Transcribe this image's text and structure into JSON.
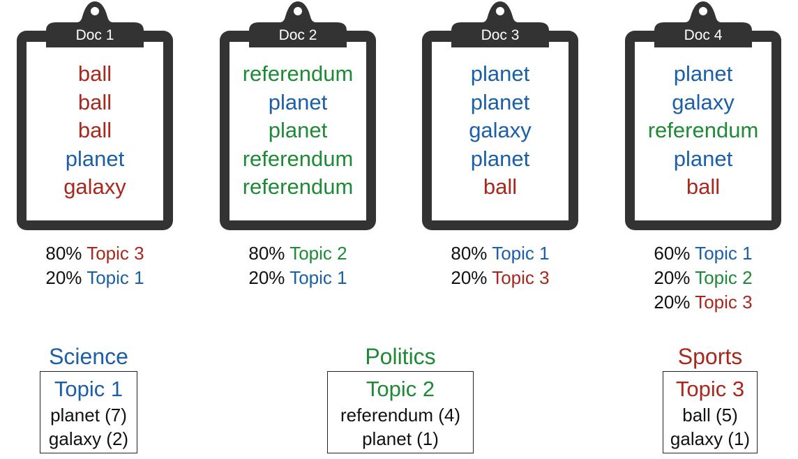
{
  "colors": {
    "topic_1": "#1b5fa8",
    "topic_2": "#1e8a36",
    "topic_3": "#a8281d",
    "clipboard": "#333333"
  },
  "documents": [
    {
      "title": "Doc 1",
      "words": [
        {
          "text": "ball",
          "topic": "topic_3"
        },
        {
          "text": "ball",
          "topic": "topic_3"
        },
        {
          "text": "ball",
          "topic": "topic_3"
        },
        {
          "text": "planet",
          "topic": "topic_1"
        },
        {
          "text": "galaxy",
          "topic": "topic_3"
        }
      ],
      "mixture": [
        {
          "percent": "80%",
          "label": "Topic 3",
          "topic": "topic_3"
        },
        {
          "percent": "20%",
          "label": "Topic 1",
          "topic": "topic_1"
        }
      ]
    },
    {
      "title": "Doc 2",
      "words": [
        {
          "text": "referendum",
          "topic": "topic_2"
        },
        {
          "text": "planet",
          "topic": "topic_1"
        },
        {
          "text": "planet",
          "topic": "topic_2"
        },
        {
          "text": "referendum",
          "topic": "topic_2"
        },
        {
          "text": "referendum",
          "topic": "topic_2"
        }
      ],
      "mixture": [
        {
          "percent": "80%",
          "label": "Topic 2",
          "topic": "topic_2"
        },
        {
          "percent": "20%",
          "label": "Topic 1",
          "topic": "topic_1"
        }
      ]
    },
    {
      "title": "Doc 3",
      "words": [
        {
          "text": "planet",
          "topic": "topic_1"
        },
        {
          "text": "planet",
          "topic": "topic_1"
        },
        {
          "text": "galaxy",
          "topic": "topic_1"
        },
        {
          "text": "planet",
          "topic": "topic_1"
        },
        {
          "text": "ball",
          "topic": "topic_3"
        }
      ],
      "mixture": [
        {
          "percent": "80%",
          "label": "Topic 1",
          "topic": "topic_1"
        },
        {
          "percent": "20%",
          "label": "Topic 3",
          "topic": "topic_3"
        }
      ]
    },
    {
      "title": "Doc 4",
      "words": [
        {
          "text": "planet",
          "topic": "topic_1"
        },
        {
          "text": "galaxy",
          "topic": "topic_1"
        },
        {
          "text": "referendum",
          "topic": "topic_2"
        },
        {
          "text": "planet",
          "topic": "topic_1"
        },
        {
          "text": "ball",
          "topic": "topic_3"
        }
      ],
      "mixture": [
        {
          "percent": "60%",
          "label": "Topic 1",
          "topic": "topic_1"
        },
        {
          "percent": "20%",
          "label": "Topic 2",
          "topic": "topic_2"
        },
        {
          "percent": "20%",
          "label": "Topic 3",
          "topic": "topic_3"
        }
      ]
    }
  ],
  "topics": [
    {
      "category": "Science",
      "label": "Topic 1",
      "color": "topic_1",
      "words": [
        {
          "text": "planet (7)"
        },
        {
          "text": "galaxy (2)"
        }
      ]
    },
    {
      "category": "Politics",
      "label": "Topic 2",
      "color": "topic_2",
      "words": [
        {
          "text": "referendum (4)"
        },
        {
          "text": "planet (1)"
        }
      ]
    },
    {
      "category": "Sports",
      "label": "Topic 3",
      "color": "topic_3",
      "words": [
        {
          "text": "ball (5)"
        },
        {
          "text": "galaxy (1)"
        }
      ]
    }
  ]
}
